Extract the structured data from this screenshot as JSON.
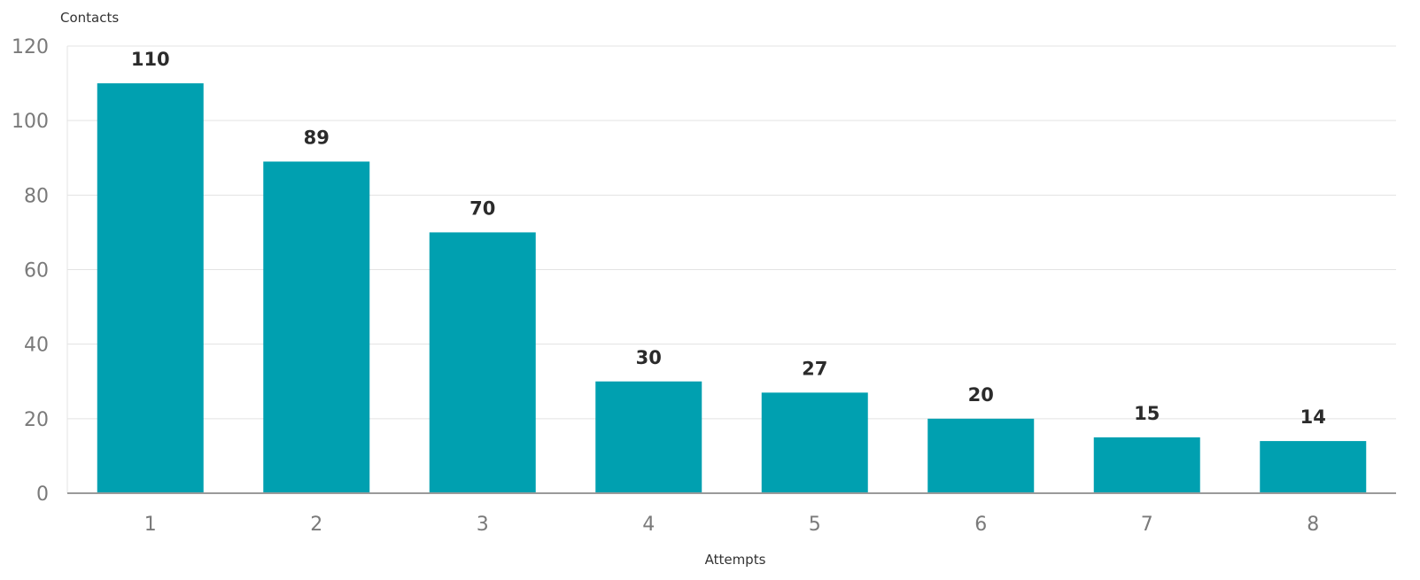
{
  "chart_data": {
    "type": "bar",
    "title": "",
    "ylabel": "Contacts",
    "xlabel": "Attempts",
    "categories": [
      "1",
      "2",
      "3",
      "4",
      "5",
      "6",
      "7",
      "8"
    ],
    "values": [
      110,
      89,
      70,
      30,
      27,
      20,
      15,
      14
    ],
    "ylim": [
      0,
      120
    ],
    "yticks": [
      0,
      20,
      40,
      60,
      80,
      100,
      120
    ],
    "grid": true,
    "data_labels": true,
    "colors": {
      "bar": "#00a0b0"
    }
  }
}
